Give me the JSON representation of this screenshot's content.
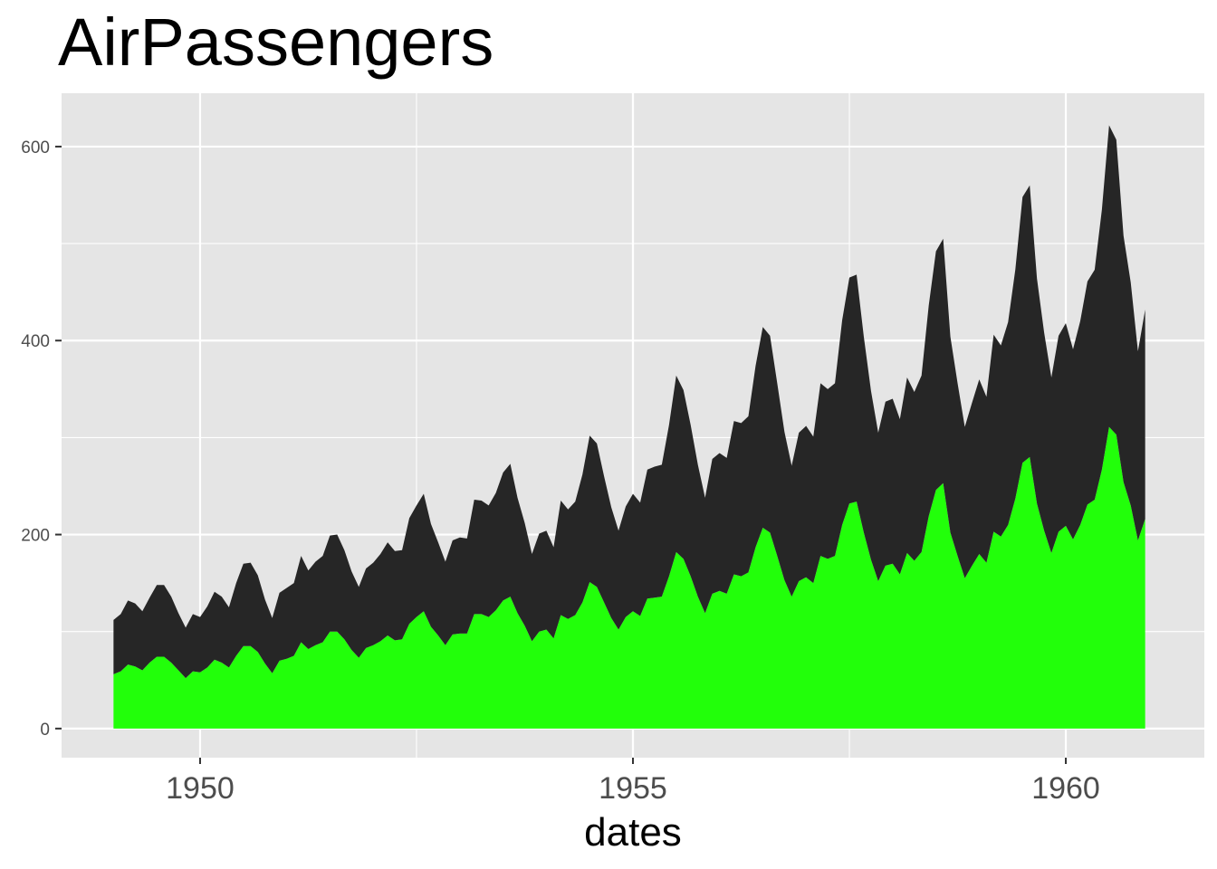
{
  "chart_data": {
    "type": "area",
    "title": "AirPassengers",
    "xlabel": "dates",
    "ylabel": "",
    "xlim": [
      1948.4,
      1961.6
    ],
    "ylim": [
      -30,
      655
    ],
    "x_ticks": [
      1950,
      1955,
      1960
    ],
    "y_ticks": [
      0,
      200,
      400,
      600
    ],
    "grid": true,
    "legend": "none",
    "stacked": true,
    "x_start": 1949,
    "x_step": 0.08333333333,
    "series": [
      {
        "color": "#22ff0a",
        "values": [
          56,
          59,
          66,
          64,
          60,
          68,
          74,
          74,
          68,
          60,
          52,
          59,
          58,
          63,
          71,
          68,
          63,
          75,
          85,
          85,
          79,
          67,
          57,
          70,
          72,
          75,
          89,
          82,
          86,
          89,
          100,
          100,
          92,
          81,
          73,
          83,
          86,
          90,
          96,
          91,
          92,
          108,
          115,
          121,
          105,
          96,
          86,
          97,
          98,
          98,
          118,
          118,
          115,
          122,
          132,
          136,
          119,
          106,
          90,
          100,
          102,
          93,
          117,
          113,
          117,
          130,
          151,
          146,
          130,
          114,
          102,
          115,
          121,
          116,
          134,
          135,
          136,
          157,
          182,
          175,
          157,
          136,
          119,
          139,
          142,
          139,
          159,
          157,
          161,
          187,
          207,
          202,
          178,
          153,
          136,
          152,
          156,
          150,
          178,
          175,
          178,
          210,
          232,
          234,
          202,
          174,
          152,
          168,
          170,
          159,
          181,
          173,
          182,
          219,
          246,
          253,
          202,
          178,
          155,
          168,
          180,
          171,
          203,
          198,
          210,
          237,
          274,
          280,
          232,
          204,
          181,
          203,
          209,
          195,
          210,
          231,
          236,
          267,
          311,
          303,
          254,
          230,
          194,
          216
        ]
      },
      {
        "color": "#262626",
        "values": [
          56,
          59,
          66,
          65,
          61,
          67,
          74,
          74,
          68,
          59,
          52,
          59,
          57,
          63,
          70,
          68,
          62,
          75,
          85,
          86,
          79,
          66,
          57,
          70,
          73,
          75,
          89,
          81,
          86,
          89,
          99,
          100,
          92,
          81,
          73,
          82,
          85,
          90,
          96,
          92,
          92,
          109,
          115,
          121,
          106,
          96,
          86,
          97,
          99,
          98,
          118,
          117,
          115,
          121,
          132,
          137,
          119,
          106,
          90,
          101,
          102,
          94,
          118,
          113,
          117,
          132,
          151,
          148,
          130,
          114,
          102,
          114,
          121,
          117,
          133,
          135,
          136,
          156,
          182,
          174,
          156,
          136,
          119,
          139,
          142,
          140,
          158,
          158,
          161,
          187,
          207,
          203,
          178,
          153,
          135,
          153,
          156,
          151,
          178,
          175,
          178,
          211,
          233,
          234,
          202,
          174,
          153,
          169,
          170,
          160,
          181,
          174,
          182,
          217,
          246,
          252,
          202,
          178,
          156,
          168,
          180,
          171,
          203,
          197,
          209,
          236,
          274,
          280,
          232,
          204,
          181,
          202,
          209,
          196,
          210,
          230,
          237,
          268,
          311,
          304,
          254,
          230,
          195,
          216
        ]
      }
    ]
  }
}
